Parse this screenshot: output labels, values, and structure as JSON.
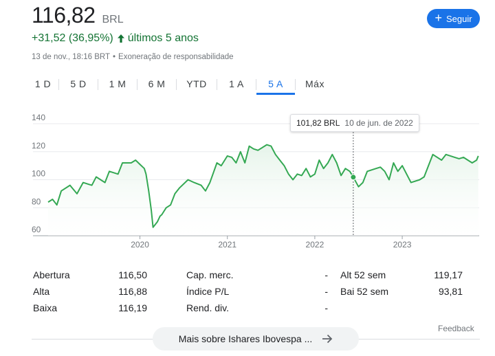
{
  "quote": {
    "price": "116,82",
    "currency": "BRL",
    "change": "+31,52 (36,95%)",
    "period": "últimos 5 anos",
    "timestamp": "13 de nov., 18:16 BRT",
    "disclaimer": "Exoneração de responsabilidade",
    "follow_label": "Seguir"
  },
  "ranges": [
    {
      "label": "1 D",
      "active": false
    },
    {
      "label": "5 D",
      "active": false
    },
    {
      "label": "1 M",
      "active": false
    },
    {
      "label": "6 M",
      "active": false
    },
    {
      "label": "YTD",
      "active": false
    },
    {
      "label": "1 A",
      "active": false
    },
    {
      "label": "5 A",
      "active": true
    },
    {
      "label": "Máx",
      "active": false
    }
  ],
  "tooltip": {
    "value": "101,82 BRL",
    "date": "10 de jun. de 2022"
  },
  "chart_data": {
    "type": "area",
    "ylim": [
      60,
      140
    ],
    "yticks": [
      60,
      80,
      100,
      120,
      140
    ],
    "xlim": [
      2018.95,
      2023.88
    ],
    "xticks": [
      2020,
      2021,
      2022,
      2023
    ],
    "xtick_labels": [
      "2020",
      "2021",
      "2022",
      "2023"
    ],
    "grid": true,
    "series": [
      {
        "line_color": "#34a853",
        "fill_color": "#e6f4ea",
        "x": [
          2018.95,
          2019.0,
          2019.05,
          2019.1,
          2019.2,
          2019.28,
          2019.35,
          2019.45,
          2019.5,
          2019.6,
          2019.65,
          2019.75,
          2019.8,
          2019.9,
          2019.95,
          2020.0,
          2020.05,
          2020.07,
          2020.1,
          2020.13,
          2020.15,
          2020.2,
          2020.23,
          2020.25,
          2020.3,
          2020.35,
          2020.4,
          2020.45,
          2020.55,
          2020.62,
          2020.7,
          2020.75,
          2020.8,
          2020.88,
          2020.93,
          2021.0,
          2021.05,
          2021.1,
          2021.15,
          2021.2,
          2021.25,
          2021.3,
          2021.35,
          2021.45,
          2021.5,
          2021.55,
          2021.6,
          2021.65,
          2021.7,
          2021.75,
          2021.8,
          2021.85,
          2021.9,
          2021.95,
          2022.0,
          2022.05,
          2022.1,
          2022.15,
          2022.2,
          2022.25,
          2022.3,
          2022.35,
          2022.4,
          2022.44,
          2022.5,
          2022.55,
          2022.6,
          2022.7,
          2022.75,
          2022.8,
          2022.85,
          2022.9,
          2022.95,
          2023.0,
          2023.1,
          2023.2,
          2023.25,
          2023.3,
          2023.35,
          2023.45,
          2023.5,
          2023.6,
          2023.65,
          2023.7,
          2023.75,
          2023.8,
          2023.85,
          2023.87
        ],
        "y": [
          84,
          86,
          82,
          92,
          96,
          90,
          98,
          96,
          102,
          98,
          106,
          104,
          112,
          112,
          114,
          111,
          108,
          104,
          92,
          78,
          66,
          70,
          74,
          75,
          80,
          82,
          90,
          94,
          100,
          98,
          96,
          92,
          98,
          112,
          110,
          117,
          116,
          112,
          120,
          112,
          124,
          122,
          121,
          125,
          124,
          118,
          114,
          110,
          104,
          100,
          104,
          103,
          108,
          102,
          104,
          114,
          108,
          112,
          118,
          112,
          103,
          108,
          106,
          101.82,
          95,
          98,
          106,
          108,
          109,
          106,
          100,
          112,
          106,
          110,
          98,
          100,
          102,
          110,
          118,
          114,
          118,
          116,
          115,
          116,
          114,
          112,
          114,
          117
        ]
      }
    ]
  },
  "stats": {
    "col1": [
      {
        "label": "Abertura",
        "value": "116,50"
      },
      {
        "label": "Alta",
        "value": "116,88"
      },
      {
        "label": "Baixa",
        "value": "116,19"
      }
    ],
    "col2": [
      {
        "label": "Cap. merc.",
        "value": "-"
      },
      {
        "label": "Índice P/L",
        "value": "-"
      },
      {
        "label": "Rend. div.",
        "value": "-"
      }
    ],
    "col3": [
      {
        "label": "Alt 52 sem",
        "value": "119,17"
      },
      {
        "label": "Bai 52 sem",
        "value": "93,81"
      }
    ]
  },
  "footer": {
    "feedback": "Feedback",
    "more_label": "Mais sobre Ishares Ibovespa ..."
  }
}
